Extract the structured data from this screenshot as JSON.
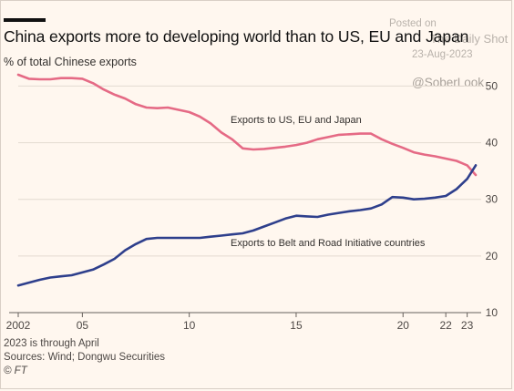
{
  "watermark": {
    "posted": "Posted on",
    "source": "The Daily Shot",
    "date": "23-Aug-2023",
    "handle": "@SoberLook"
  },
  "chart_data": {
    "type": "line",
    "title": "China exports more to developing world than to US, EU and Japan",
    "ylabel": "% of total Chinese exports",
    "xlim": [
      2002,
      2023.4
    ],
    "ylim": [
      10,
      52
    ],
    "yticks": [
      10,
      20,
      30,
      40,
      50
    ],
    "xticks": [
      {
        "x": 2002,
        "label": "2002"
      },
      {
        "x": 2005,
        "label": "05"
      },
      {
        "x": 2010,
        "label": "10"
      },
      {
        "x": 2015,
        "label": "15"
      },
      {
        "x": 2020,
        "label": "20"
      },
      {
        "x": 2022,
        "label": "22"
      },
      {
        "x": 2023,
        "label": "23"
      }
    ],
    "grid": true,
    "colors": {
      "series1": "#e56a85",
      "series2": "#2e3f8c",
      "grid": "#e3dad1",
      "axis": "#66605c"
    },
    "series": [
      {
        "name": "Exports to US, EU and Japan",
        "x": [
          2002,
          2002.5,
          2003,
          2003.5,
          2004,
          2004.5,
          2005,
          2005.5,
          2006,
          2006.5,
          2007,
          2007.5,
          2008,
          2008.5,
          2009,
          2009.5,
          2010,
          2010.5,
          2011,
          2011.5,
          2012,
          2012.5,
          2013,
          2013.5,
          2014,
          2014.5,
          2015,
          2015.5,
          2016,
          2016.5,
          2017,
          2017.5,
          2018,
          2018.5,
          2019,
          2019.5,
          2020,
          2020.5,
          2021,
          2021.5,
          2022,
          2022.5,
          2023,
          2023.4
        ],
        "values": [
          52.0,
          51.3,
          51.2,
          51.2,
          51.4,
          51.4,
          51.3,
          50.5,
          49.4,
          48.5,
          47.8,
          46.8,
          46.2,
          46.1,
          46.2,
          45.8,
          45.4,
          44.6,
          43.4,
          41.8,
          40.6,
          39.0,
          38.8,
          38.9,
          39.1,
          39.3,
          39.6,
          40.0,
          40.6,
          41.0,
          41.4,
          41.5,
          41.6,
          41.6,
          40.6,
          39.8,
          39.1,
          38.3,
          37.9,
          37.6,
          37.2,
          36.8,
          36.0,
          34.3
        ]
      },
      {
        "name": "Exports to Belt and Road Initiative countries",
        "x": [
          2002,
          2002.5,
          2003,
          2003.5,
          2004,
          2004.5,
          2005,
          2005.5,
          2006,
          2006.5,
          2007,
          2007.5,
          2008,
          2008.5,
          2009,
          2009.5,
          2010,
          2010.5,
          2011,
          2011.5,
          2012,
          2012.5,
          2013,
          2013.5,
          2014,
          2014.5,
          2015,
          2015.5,
          2016,
          2016.5,
          2017,
          2017.5,
          2018,
          2018.5,
          2019,
          2019.5,
          2020,
          2020.5,
          2021,
          2021.5,
          2022,
          2022.5,
          2023,
          2023.4
        ],
        "values": [
          14.8,
          15.3,
          15.8,
          16.2,
          16.4,
          16.6,
          17.1,
          17.6,
          18.5,
          19.5,
          21.0,
          22.1,
          23.0,
          23.2,
          23.2,
          23.2,
          23.2,
          23.2,
          23.4,
          23.6,
          23.8,
          24.0,
          24.5,
          25.2,
          25.9,
          26.6,
          27.1,
          27.0,
          26.9,
          27.3,
          27.6,
          27.9,
          28.1,
          28.4,
          29.1,
          30.4,
          30.3,
          30.0,
          30.1,
          30.3,
          30.6,
          31.8,
          33.6,
          36.0
        ]
      }
    ],
    "annotations": [
      {
        "series": 0,
        "text": "Exports to US, EU and Japan"
      },
      {
        "series": 1,
        "text": "Exports to Belt and Road Initiative countries"
      }
    ]
  },
  "footnotes": {
    "note": "2023 is through April",
    "sources": "Sources: Wind; Dongwu Securities",
    "credit": "© FT"
  }
}
